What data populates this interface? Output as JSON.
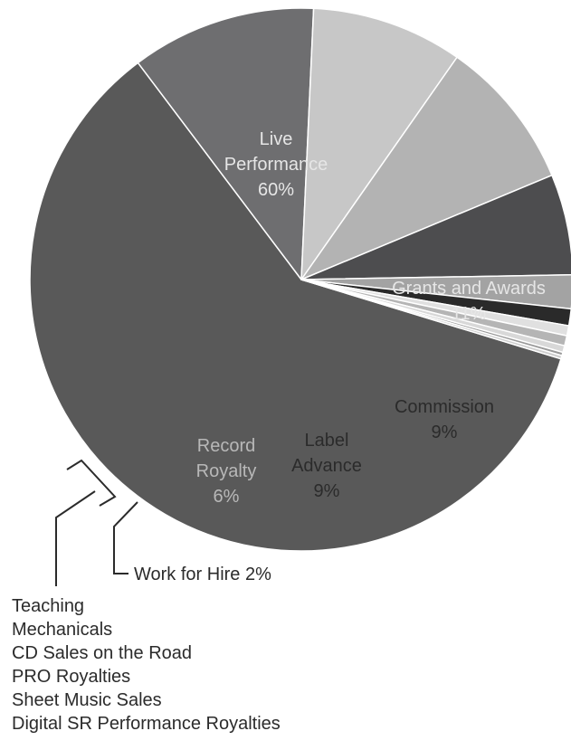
{
  "chart_data": {
    "type": "pie",
    "slices": [
      {
        "label": "Live Performance",
        "percent_label": "60%",
        "value": 60,
        "color": "#595959",
        "text_color": "#e6e6e6"
      },
      {
        "label": "Grants and Awards",
        "percent_label": "11%",
        "value": 11,
        "color": "#6e6e70",
        "text_color": "#e6e6e6"
      },
      {
        "label": "Commission",
        "percent_label": "9%",
        "value": 9,
        "color": "#c7c7c7",
        "text_color": "#2b2b2b"
      },
      {
        "label": "Label Advance",
        "percent_label": "9%",
        "value": 9,
        "color": "#b3b3b3",
        "text_color": "#2b2b2b"
      },
      {
        "label": "Record Royalty",
        "percent_label": "6%",
        "value": 6,
        "color": "#4d4d4f",
        "text_color": "#b8b8b8"
      },
      {
        "label": "Work for Hire",
        "percent_label": "2%",
        "value": 2,
        "color": "#a3a3a3",
        "text_color": "#2b2b2b"
      },
      {
        "label": "Teaching",
        "value": 1,
        "color": "#2a2a2a"
      },
      {
        "label": "Mechanicals",
        "value": 0.6,
        "color": "#e0e0e0"
      },
      {
        "label": "CD Sales on the Road",
        "value": 0.6,
        "color": "#b5b5b5"
      },
      {
        "label": "PRO Royalties",
        "value": 0.4,
        "color": "#d8d8d8"
      },
      {
        "label": "Sheet Music Sales",
        "value": 0.2,
        "color": "#9a9a9a"
      },
      {
        "label": "Digital SR Performance Royalties",
        "value": 0.2,
        "color": "#cfcfcf"
      }
    ],
    "callout_work_for_hire": "Work for Hire 2%",
    "small_slices_list": [
      "Teaching",
      "Mechanicals",
      "CD Sales on the Road",
      "PRO Royalties",
      "Sheet Music Sales",
      "Digital SR Performance Royalties"
    ]
  }
}
